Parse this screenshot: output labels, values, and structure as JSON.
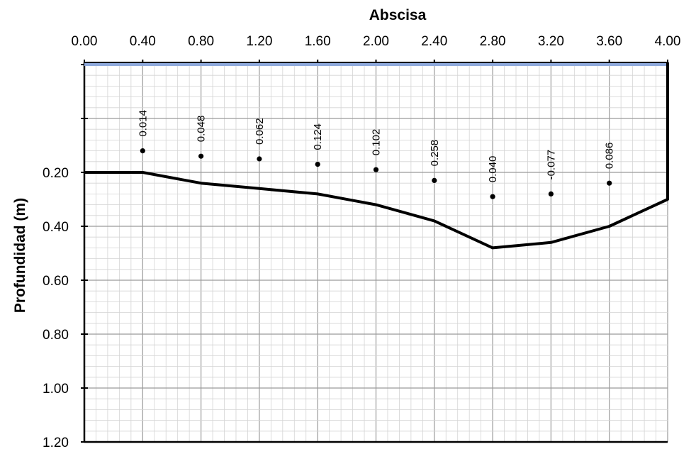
{
  "chart_data": {
    "type": "line",
    "title": "",
    "xlabel": "Abscisa",
    "ylabel": "Profundidad (m)",
    "x_axis_position": "top",
    "y_inverted": true,
    "xlim": [
      0,
      4
    ],
    "ylim": [
      0,
      1.2
    ],
    "x_ticks": [
      "0.00",
      "0.40",
      "0.80",
      "1.20",
      "1.60",
      "2.00",
      "2.40",
      "2.80",
      "3.20",
      "3.60",
      "4.00"
    ],
    "y_ticks": [
      "0.20",
      "0.40",
      "0.60",
      "0.80",
      "1.00",
      "1.20"
    ],
    "grid": true,
    "legend": "none",
    "water_surface": {
      "y": -0.2,
      "color": "#8FAADC"
    },
    "series": [
      {
        "type": "line",
        "color": "#000000",
        "x": [
          0.0,
          0.4,
          0.8,
          1.2,
          1.6,
          2.0,
          2.4,
          2.8,
          3.2,
          3.6,
          4.0,
          4.0
        ],
        "y": [
          0.2,
          0.2,
          0.24,
          0.26,
          0.28,
          0.32,
          0.38,
          0.48,
          0.46,
          0.4,
          0.3,
          -0.4
        ]
      },
      {
        "type": "scatter",
        "color": "#000000",
        "x": [
          0.4,
          0.8,
          1.2,
          1.6,
          2.0,
          2.4,
          2.8,
          3.2,
          3.6
        ],
        "y": [
          0.12,
          0.14,
          0.15,
          0.17,
          0.19,
          0.23,
          0.29,
          0.28,
          0.24
        ],
        "labels": [
          "0.014",
          "0.048",
          "0.062",
          "0.124",
          "0.102",
          "0.258",
          "0.040",
          "-0.077",
          "0.086"
        ]
      }
    ]
  }
}
